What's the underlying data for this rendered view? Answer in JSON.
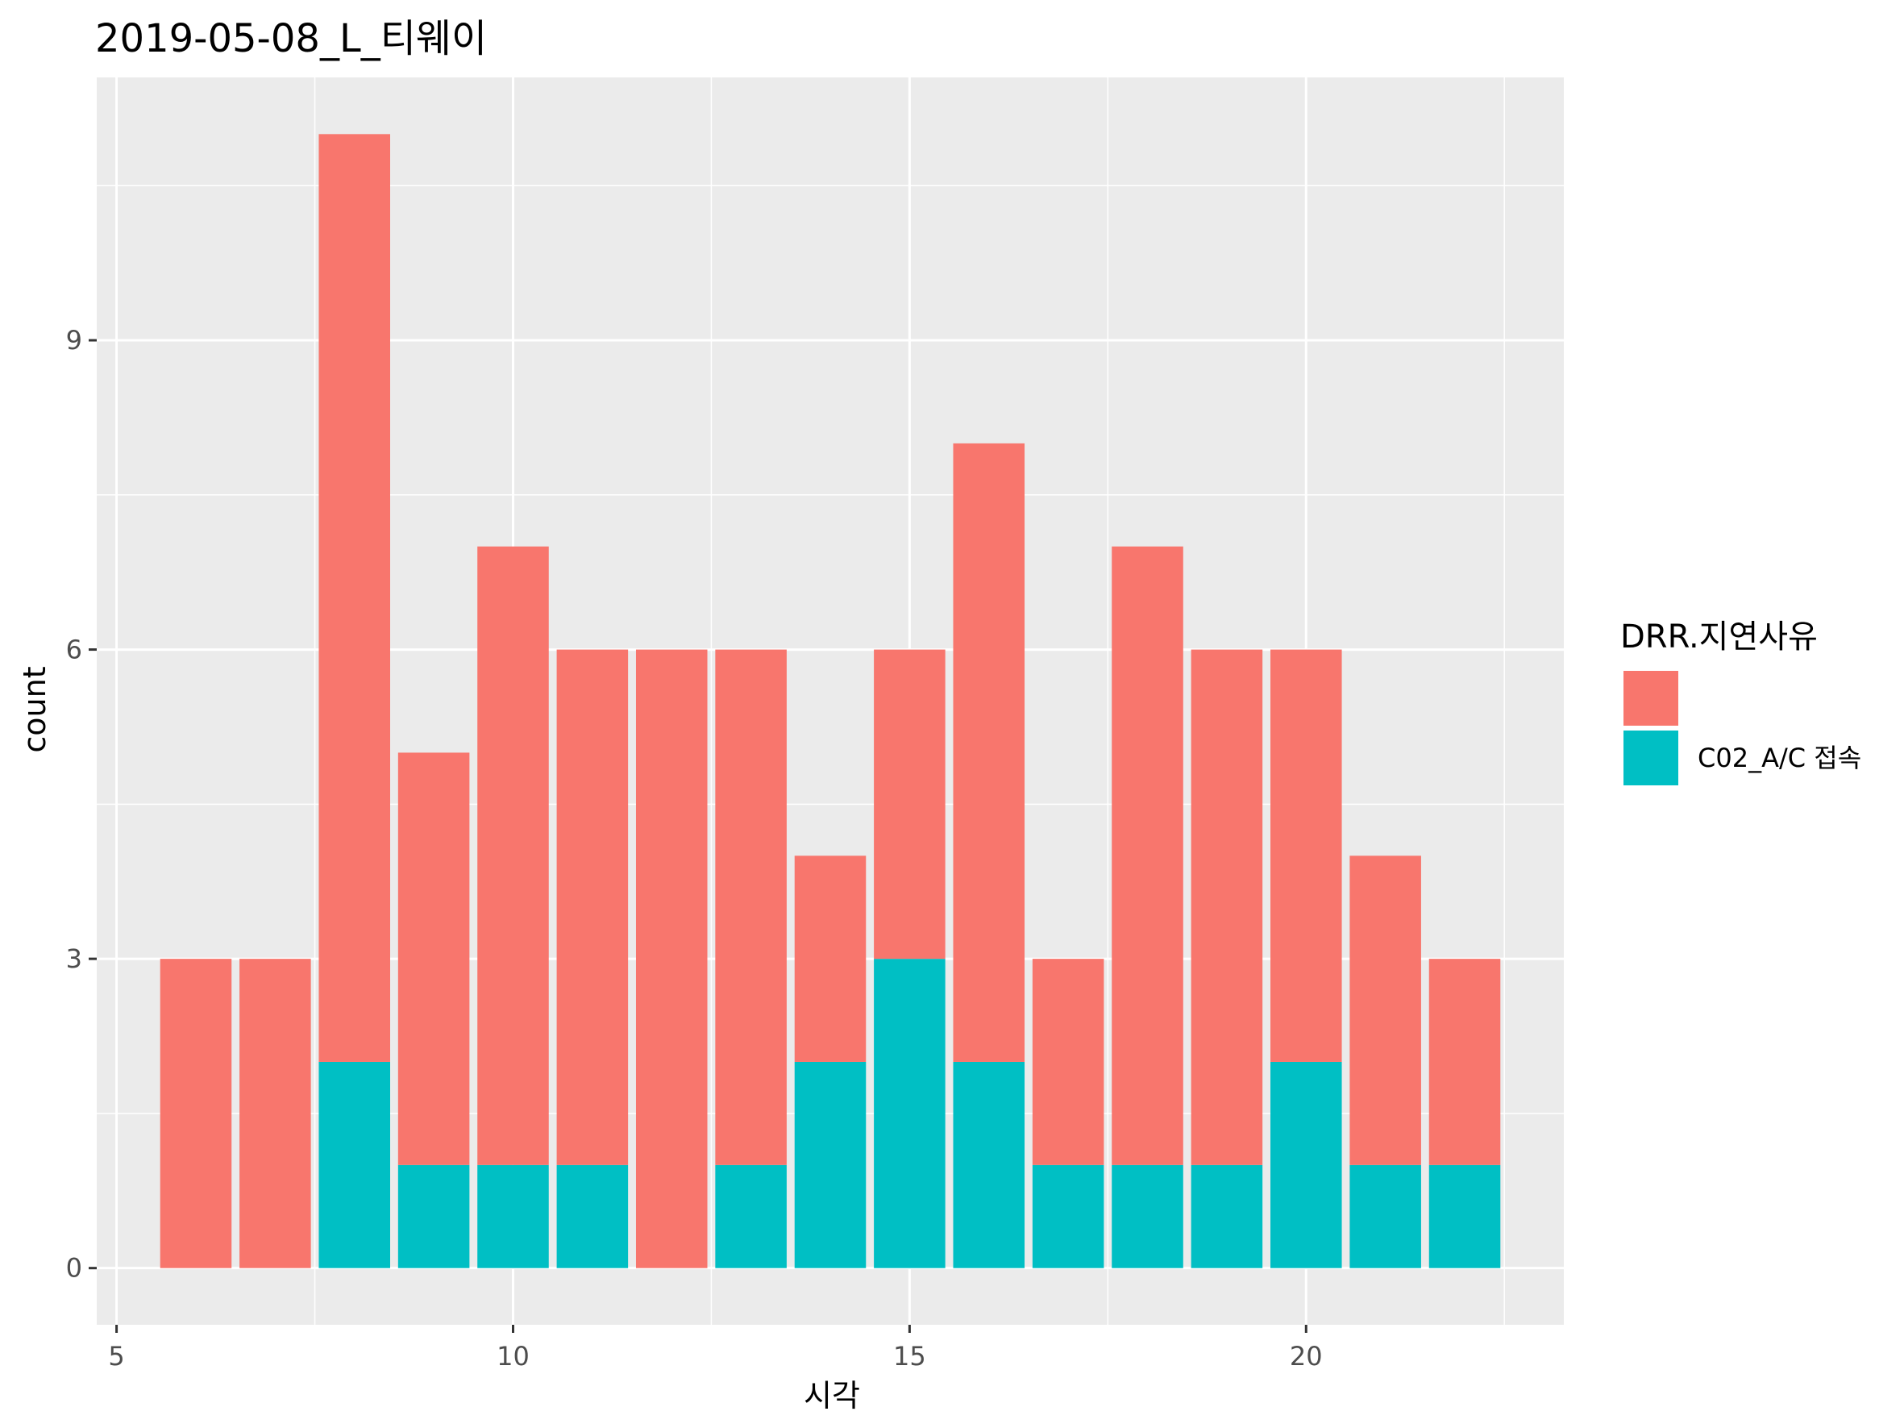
{
  "chart_data": {
    "type": "bar",
    "stacked": true,
    "title": "2019-05-08_L_티웨이",
    "xlabel": "시각",
    "ylabel": "count",
    "x": [
      6,
      7,
      8,
      9,
      10,
      11,
      12,
      13,
      14,
      15,
      16,
      17,
      18,
      19,
      20,
      21,
      22
    ],
    "series": [
      {
        "name": "",
        "color": "#F8766D",
        "values": [
          3,
          3,
          9,
          4,
          6,
          5,
          6,
          5,
          2,
          3,
          6,
          2,
          6,
          5,
          4,
          3,
          2
        ]
      },
      {
        "name": "C02_A/C 접속",
        "color": "#00BFC4",
        "values": [
          0,
          0,
          2,
          1,
          1,
          1,
          0,
          1,
          2,
          3,
          2,
          1,
          1,
          1,
          2,
          1,
          1
        ]
      }
    ],
    "xlim": [
      4.75,
      23.25
    ],
    "ylim": [
      -0.55,
      11.55
    ],
    "x_ticks": [
      5,
      10,
      15,
      20
    ],
    "x_tick_labels": [
      "5",
      "10",
      "15",
      "20"
    ],
    "y_ticks": [
      0,
      3,
      6,
      9
    ],
    "y_tick_labels": [
      "0",
      "3",
      "6",
      "9"
    ],
    "panel_background": "#EBEBEB",
    "grid": true,
    "grid_color": "#FFFFFF",
    "legend": {
      "position": "right",
      "title": "DRR.지연사유",
      "entries": [
        "",
        "C02_A/C 접속"
      ]
    }
  }
}
